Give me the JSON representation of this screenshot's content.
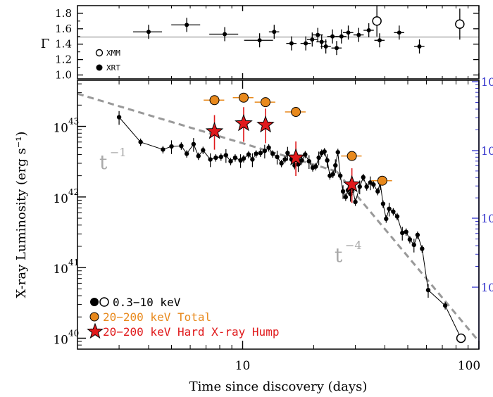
{
  "chart_data": {
    "type": "scatter",
    "xlabel": "Time since discovery (days)",
    "ylabel": "X-ray Luminosity (erg s⁻¹)",
    "x_scale": "log",
    "y_scale": "log",
    "xlim": [
      2,
      100
    ],
    "ylim": [
      7e+39,
      4.5e+43
    ],
    "x_tick_labels": [
      "10",
      "100"
    ],
    "y_tick_labels": [
      "10",
      "10",
      "10",
      "10"
    ],
    "y_tick_exponents": [
      "40",
      "41",
      "42",
      "43"
    ],
    "right_axis_tick_labels": [
      "10",
      "10",
      "10",
      "10"
    ],
    "right_axis_color": "#3333cc",
    "annotations": [
      {
        "text": "t",
        "exponent": "−1",
        "x": 2.3,
        "y": 5e+42
      },
      {
        "text": "t",
        "exponent": "−4",
        "x": 31,
        "y": 1.2e+41
      }
    ],
    "model_lines": [
      {
        "label": "t⁻¹",
        "x": [
          2,
          25
        ],
        "y": [
          2.9e+43,
          2.3e+42
        ],
        "style": "dashed",
        "color": "#999999"
      },
      {
        "label": "t⁻⁴",
        "x": [
          25,
          100
        ],
        "y": [
          2.3e+42,
          9e+39
        ],
        "style": "dashed",
        "color": "#999999"
      }
    ],
    "legend": {
      "placement": "bottom-left",
      "entries": [
        {
          "label": "0.3−10 keV",
          "marker": "filled+open circle",
          "color": "#000000"
        },
        {
          "label": "20−200 keV Total",
          "marker": "circle",
          "color": "#e8891c"
        },
        {
          "label": "20−200 keV Hard X-ray Hump",
          "marker": "star",
          "color": "#e0191b"
        }
      ]
    },
    "series": [
      {
        "name": "0.3−10 keV",
        "instrument": "XRT",
        "color": "#000000",
        "marker": "filled circle",
        "points": [
          [
            3.0,
            1.35e+43
          ],
          [
            3.7,
            6e+42
          ],
          [
            4.6,
            4.7e+42
          ],
          [
            5.0,
            5.2e+42
          ],
          [
            5.5,
            5.3e+42
          ],
          [
            5.8,
            4.1e+42
          ],
          [
            6.2,
            5.6e+42
          ],
          [
            6.5,
            3.8e+42
          ],
          [
            6.8,
            4.6e+42
          ],
          [
            7.3,
            3.4e+42
          ],
          [
            7.7,
            3.6e+42
          ],
          [
            8.1,
            3.7e+42
          ],
          [
            8.5,
            3.9e+42
          ],
          [
            8.9,
            3.2e+42
          ],
          [
            9.3,
            3.6e+42
          ],
          [
            9.8,
            3.3e+42
          ],
          [
            10.1,
            3.5e+42
          ],
          [
            10.6,
            4e+42
          ],
          [
            11.0,
            3.4e+42
          ],
          [
            11.4,
            4.1e+42
          ],
          [
            11.9,
            4.2e+42
          ],
          [
            12.4,
            4.5e+42
          ],
          [
            12.9,
            5e+42
          ],
          [
            13.4,
            4.1e+42
          ],
          [
            14.0,
            3.7e+42
          ],
          [
            14.6,
            3e+42
          ],
          [
            15.1,
            3.4e+42
          ],
          [
            15.5,
            4.2e+42
          ],
          [
            16.1,
            3.4e+42
          ],
          [
            16.6,
            2.8e+42
          ],
          [
            17.2,
            2.9e+42
          ],
          [
            17.8,
            3.3e+42
          ],
          [
            18.4,
            4e+42
          ],
          [
            19.1,
            3.2e+42
          ],
          [
            19.8,
            2.6e+42
          ],
          [
            20.4,
            2.7e+42
          ],
          [
            21.0,
            3.6e+42
          ],
          [
            21.6,
            4.2e+42
          ],
          [
            22.2,
            4.4e+42
          ],
          [
            22.8,
            3.3e+42
          ],
          [
            23.4,
            2e+42
          ],
          [
            24.1,
            2.1e+42
          ],
          [
            24.7,
            2.8e+42
          ],
          [
            25.3,
            4.3e+42
          ],
          [
            25.9,
            2e+42
          ],
          [
            26.6,
            1.2e+42
          ],
          [
            27.3,
            1e+42
          ],
          [
            27.9,
            1.25e+42
          ],
          [
            28.6,
            1.1e+42
          ],
          [
            29.2,
            1.3e+42
          ],
          [
            30.0,
            8.5e+41
          ],
          [
            31.3,
            1.4e+42
          ],
          [
            32.4,
            1.9e+42
          ],
          [
            33.5,
            1.4e+42
          ],
          [
            34.7,
            1.6e+42
          ],
          [
            35.8,
            1.5e+42
          ],
          [
            37.3,
            1.2e+42
          ],
          [
            38.2,
            1.6e+42
          ],
          [
            39.3,
            8e+41
          ],
          [
            40.5,
            4.9e+41
          ],
          [
            41.7,
            6.8e+41
          ],
          [
            43.4,
            6.2e+41
          ],
          [
            45.1,
            5.3e+41
          ],
          [
            47.4,
            3.1e+41
          ],
          [
            49.2,
            3.2e+41
          ],
          [
            51.0,
            2.5e+41
          ],
          [
            53.1,
            2.1e+41
          ],
          [
            55.0,
            2.9e+41
          ],
          [
            57.5,
            1.85e+41
          ],
          [
            61.0,
            4.8e+40
          ],
          [
            72.0,
            2.9e+40
          ]
        ]
      },
      {
        "name": "0.3−10 keV",
        "instrument": "XMM",
        "color": "#000000",
        "marker": "open circle",
        "points": [
          [
            84.0,
            1e+40
          ]
        ]
      },
      {
        "name": "20−200 keV Total",
        "color": "#e8891c",
        "marker": "circle",
        "points": [
          [
            7.6,
            2.35e+43
          ],
          [
            10.1,
            2.55e+43
          ],
          [
            12.5,
            2.2e+43
          ],
          [
            16.8,
            1.6e+43
          ],
          [
            29.0,
            3.8e+42
          ],
          [
            39.0,
            1.7e+42
          ]
        ]
      },
      {
        "name": "20−200 keV Hard X-ray Hump",
        "color": "#e0191b",
        "marker": "star",
        "points": [
          [
            7.6,
            8.5e+42
          ],
          [
            10.1,
            1.1e+43
          ],
          [
            12.5,
            1.05e+43
          ],
          [
            16.8,
            3.6e+42
          ],
          [
            29.0,
            1.5e+42
          ]
        ]
      }
    ],
    "photon_index_panel": {
      "ylabel": "Γ",
      "ylim": [
        0.95,
        1.9
      ],
      "y_tick_labels": [
        "1.0",
        "1.2",
        "1.4",
        "1.6",
        "1.8"
      ],
      "reference_line": 1.5,
      "legend": [
        {
          "label": "XMM",
          "marker": "open circle"
        },
        {
          "label": "XRT",
          "marker": "filled circle"
        }
      ],
      "xrt_points": [
        [
          4.0,
          1.56
        ],
        [
          5.8,
          1.65
        ],
        [
          8.4,
          1.53
        ],
        [
          11.8,
          1.45
        ],
        [
          13.6,
          1.56
        ],
        [
          16.1,
          1.41
        ],
        [
          18.5,
          1.41
        ],
        [
          19.7,
          1.46
        ],
        [
          20.8,
          1.52
        ],
        [
          21.6,
          1.43
        ],
        [
          22.5,
          1.37
        ],
        [
          24.0,
          1.5
        ],
        [
          25.0,
          1.35
        ],
        [
          26.2,
          1.5
        ],
        [
          28.0,
          1.55
        ],
        [
          31.0,
          1.52
        ],
        [
          34.2,
          1.58
        ],
        [
          38.0,
          1.45
        ],
        [
          46.0,
          1.55
        ],
        [
          56.0,
          1.37
        ]
      ],
      "xmm_points": [
        [
          37.0,
          1.7
        ],
        [
          83.0,
          1.66
        ]
      ]
    }
  }
}
